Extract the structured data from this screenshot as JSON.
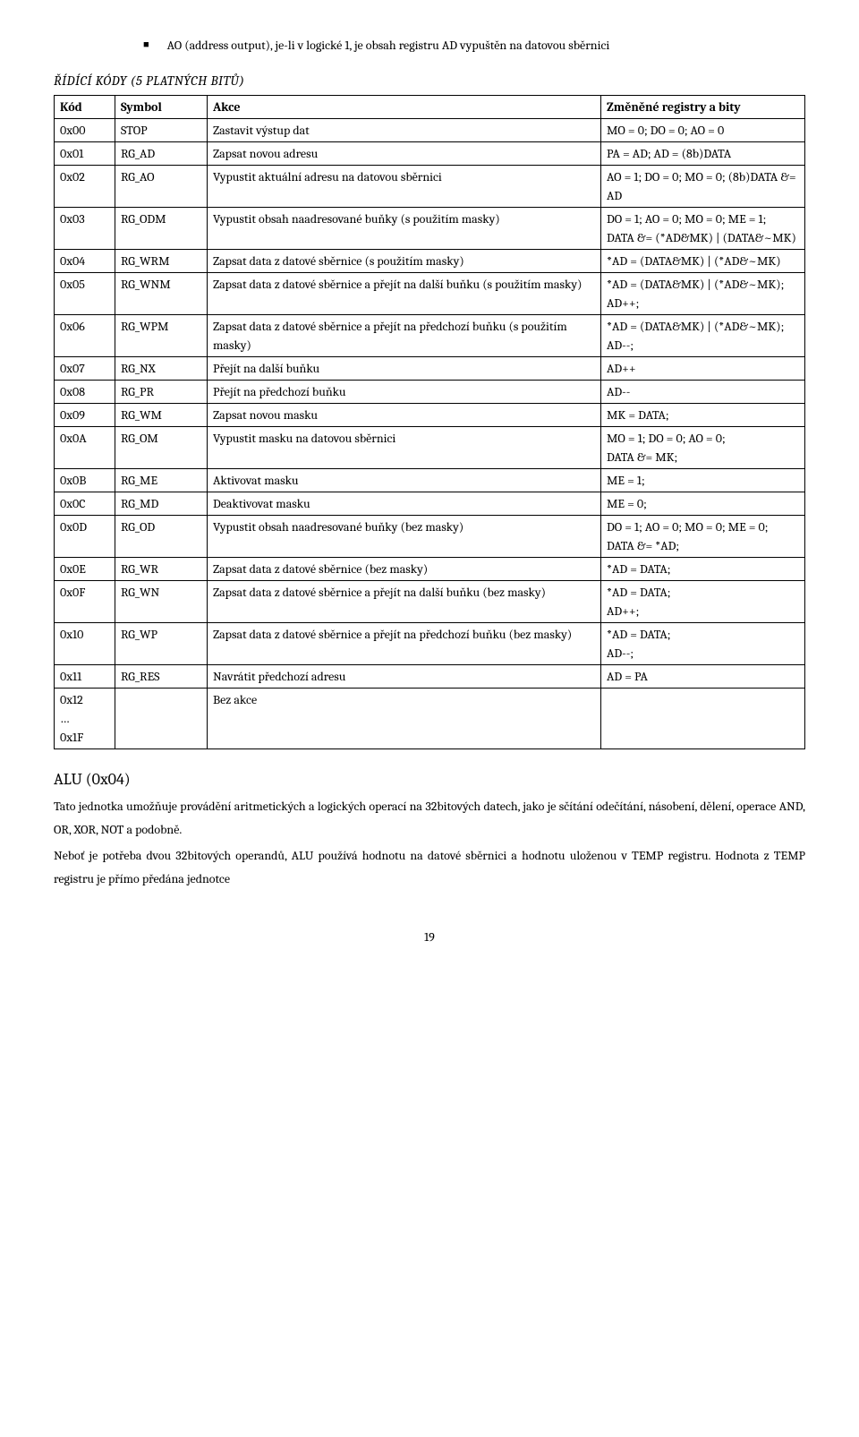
{
  "top": {
    "bullet_text": "AO (address output), je-li v logické 1, je obsah registru AD vypuštěn na datovou sběrnici"
  },
  "section_heading": "ŘÍDÍCÍ KÓDY (5 PLATNÝCH BITŮ)",
  "table": {
    "headers": [
      "Kód",
      "Symbol",
      "Akce",
      "Změněné registry a bity"
    ],
    "rows": [
      [
        "0x00",
        "STOP",
        "Zastavit výstup dat",
        "MO = 0; DO = 0; AO = 0"
      ],
      [
        "0x01",
        "RG_AD",
        "Zapsat novou adresu",
        "PA = AD; AD = (8b)DATA"
      ],
      [
        "0x02",
        "RG_AO",
        "Vypustit aktuální adresu na datovou sběrnici",
        "AO = 1; DO = 0; MO = 0; (8b)DATA &= AD"
      ],
      [
        "0x03",
        "RG_ODM",
        "Vypustit obsah naadresované buňky (s použitím masky)",
        "DO = 1; AO = 0; MO = 0; ME = 1;\nDATA &= (*AD&MK) | (DATA&~MK)"
      ],
      [
        "0x04",
        "RG_WRM",
        "Zapsat data z datové sběrnice (s použitím masky)",
        "*AD = (DATA&MK) | (*AD&~MK)"
      ],
      [
        "0x05",
        "RG_WNM",
        "Zapsat data z datové sběrnice a přejít na další buňku (s použitím masky)",
        "*AD = (DATA&MK) | (*AD&~MK);\nAD++;"
      ],
      [
        "0x06",
        "RG_WPM",
        "Zapsat data z datové sběrnice a přejít na předchozí buňku (s použitím masky)",
        "*AD = (DATA&MK) | (*AD&~MK);\nAD--;"
      ],
      [
        "0x07",
        "RG_NX",
        "Přejít na další buňku",
        "AD++"
      ],
      [
        "0x08",
        "RG_PR",
        "Přejít na předchozí buňku",
        "AD--"
      ],
      [
        "0x09",
        "RG_WM",
        "Zapsat novou masku",
        "MK = DATA;"
      ],
      [
        "0x0A",
        "RG_OM",
        "Vypustit masku na datovou sběrnici",
        "MO = 1; DO = 0; AO = 0;\nDATA &= MK;"
      ],
      [
        "0x0B",
        "RG_ME",
        "Aktivovat masku",
        "ME = 1;"
      ],
      [
        "0x0C",
        "RG_MD",
        "Deaktivovat masku",
        "ME = 0;"
      ],
      [
        "0x0D",
        "RG_OD",
        "Vypustit obsah naadresované buňky (bez masky)",
        "DO = 1; AO = 0; MO = 0; ME = 0;\nDATA &= *AD;"
      ],
      [
        "0x0E",
        "RG_WR",
        "Zapsat data z datové sběrnice (bez masky)",
        "*AD = DATA;"
      ],
      [
        "0x0F",
        "RG_WN",
        "Zapsat data z datové sběrnice a přejít na další buňku (bez masky)",
        "*AD = DATA;\nAD++;"
      ],
      [
        "0x10",
        "RG_WP",
        "Zapsat data z datové sběrnice a přejít na předchozí buňku (bez masky)",
        "*AD = DATA;\nAD--;"
      ],
      [
        "0x11",
        "RG_RES",
        "Navrátit předchozí adresu",
        "AD = PA"
      ],
      [
        "0x12\n…\n0x1F",
        "",
        "Bez akce",
        ""
      ]
    ]
  },
  "alu": {
    "title": "ALU (0x04)",
    "p1": "Tato jednotka umožňuje provádění aritmetických a logických operací na 32bitových datech, jako je sčítání odečítání, násobení, dělení, operace AND, OR, XOR, NOT a podobně.",
    "p2": "Neboť je potřeba dvou 32bitových operandů, ALU používá hodnotu na datové sběrnici a hodnotu uloženou v TEMP registru. Hodnota z TEMP registru je přímo předána jednotce"
  },
  "page_number": "19"
}
